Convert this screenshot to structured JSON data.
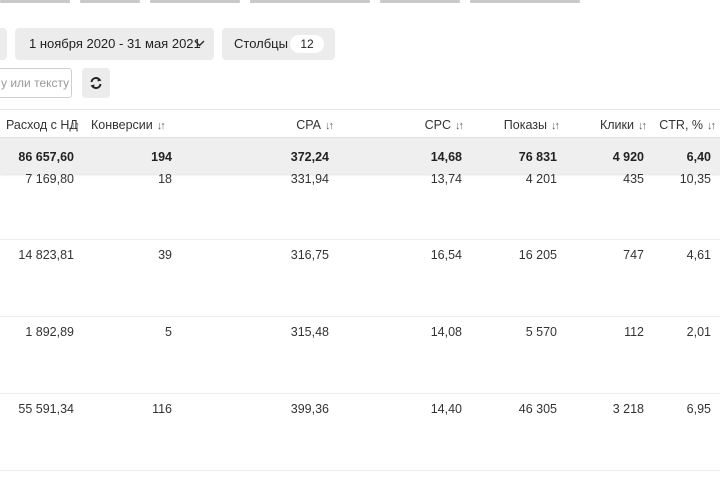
{
  "toolbar": {
    "date_range": "1 ноября 2020 - 31 мая 2021",
    "columns_label": "Столбцы",
    "columns_count": "12",
    "search_placeholder": "у или тексту"
  },
  "table": {
    "headers": [
      "Расход с НДС",
      "Конверсии",
      "CPA",
      "CPC",
      "Показы",
      "Клики",
      "CTR, %"
    ],
    "totals": [
      "86 657,60",
      "194",
      "372,24",
      "14,68",
      "76 831",
      "4 920",
      "6,40"
    ],
    "rows": [
      [
        "7 169,80",
        "18",
        "331,94",
        "13,74",
        "4 201",
        "435",
        "10,35"
      ],
      [
        "14 823,81",
        "39",
        "316,75",
        "16,54",
        "16 205",
        "747",
        "4,61"
      ],
      [
        "1 892,89",
        "5",
        "315,48",
        "14,08",
        "5 570",
        "112",
        "2,01"
      ],
      [
        "55 591,34",
        "116",
        "399,36",
        "14,40",
        "46 305",
        "3 218",
        "6,95"
      ]
    ]
  },
  "icons": [
    "chevron-down-icon",
    "refresh-icon",
    "sort-icon"
  ],
  "colors": {
    "button_bg": "#ececec",
    "totals_bg": "#efefef",
    "border": "#e4e4e4"
  }
}
